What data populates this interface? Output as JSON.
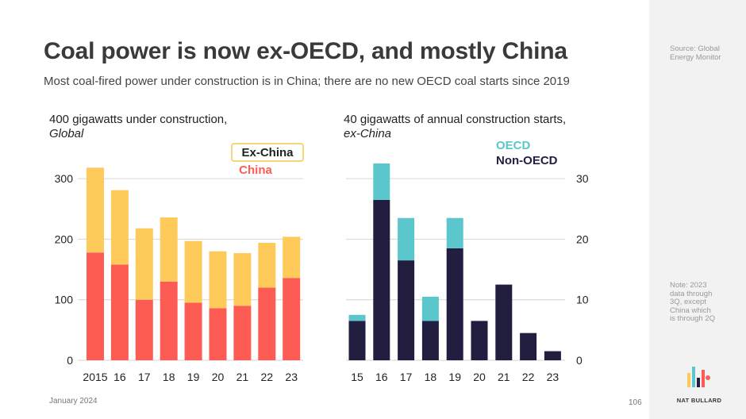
{
  "title": "Coal power is now ex-OECD, and mostly China",
  "subtitle": "Most coal-fired power under construction is in China; there are no new OECD coal starts since 2019",
  "left_chart_head": {
    "line1": "400 gigawatts under construction,",
    "line2": "Global"
  },
  "right_chart_head": {
    "line1": "40 gigawatts of annual construction starts,",
    "line2": "ex-China"
  },
  "sidebar": {
    "source": "Source: Global Energy Monitor",
    "note": "Note: 2023 data through 3Q, except China which is through 2Q",
    "brand": "NAT BULLARD"
  },
  "footer": {
    "date": "January 2024",
    "page": "106"
  },
  "colors": {
    "china": "#fd5c55",
    "ex_china": "#fecb5b",
    "oecd": "#5bc6cc",
    "non_oecd": "#221e3f",
    "legend_box": "#f5c74a"
  },
  "chart_data": [
    {
      "type": "bar",
      "stacked": true,
      "categories": [
        "2015",
        "16",
        "17",
        "18",
        "19",
        "20",
        "21",
        "22",
        "23"
      ],
      "series": [
        {
          "name": "China",
          "values": [
            178,
            158,
            100,
            130,
            95,
            86,
            90,
            120,
            136
          ],
          "color": "#fd5c55"
        },
        {
          "name": "Ex-China",
          "values": [
            140,
            123,
            118,
            106,
            102,
            94,
            87,
            74,
            68
          ],
          "color": "#fecb5b"
        }
      ],
      "ylim": [
        0,
        350
      ],
      "yticks": [
        0,
        100,
        200,
        300
      ],
      "legend_position": "top-right"
    },
    {
      "type": "bar",
      "stacked": true,
      "categories": [
        "15",
        "16",
        "17",
        "18",
        "19",
        "20",
        "21",
        "22",
        "23"
      ],
      "series": [
        {
          "name": "Non-OECD",
          "values": [
            6.5,
            26.5,
            16.5,
            6.5,
            18.5,
            6.5,
            12.5,
            4.5,
            1.5
          ],
          "color": "#221e3f"
        },
        {
          "name": "OECD",
          "values": [
            1,
            6,
            7,
            4,
            5,
            0,
            0,
            0,
            0
          ],
          "color": "#5bc6cc"
        }
      ],
      "ylim": [
        0,
        35
      ],
      "yticks": [
        0,
        10,
        20,
        30
      ],
      "legend_position": "top-right"
    }
  ]
}
